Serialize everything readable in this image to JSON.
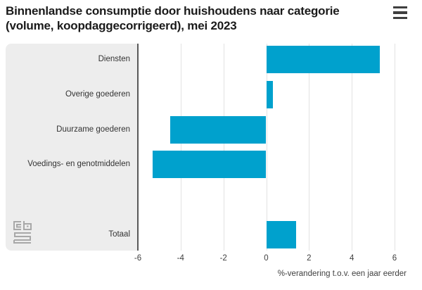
{
  "header": {
    "title_line1": "Binnenlandse consumptie door huishoudens naar categorie",
    "title_line2": "(volume, koopdaggecorrigeerd), mei 2023",
    "menu_icon": "hamburger-icon"
  },
  "footer": {
    "logo_icon": "cbs-logo"
  },
  "colors": {
    "bar": "#00a1cd",
    "label_panel_bg": "#ededed",
    "axis_line": "#595959",
    "gridline": "#e2e2e2",
    "title_text": "#1a1a1a",
    "tick_text": "#404040",
    "logo_gray": "#a8a8a8"
  },
  "chart_data": {
    "type": "bar",
    "orientation": "horizontal",
    "title": "Binnenlandse consumptie door huishoudens naar categorie (volume, koopdaggecorrigeerd), mei 2023",
    "categories": [
      "Diensten",
      "Overige goederen",
      "Duurzame goederen",
      "Voedings- en genotmiddelen",
      "Totaal"
    ],
    "values": [
      5.3,
      0.3,
      -4.5,
      -5.3,
      1.4
    ],
    "xlabel": "%-verandering t.o.v. een jaar eerder",
    "ylabel": "",
    "xlim": [
      -6,
      6
    ],
    "x_ticks": [
      -6,
      -4,
      -2,
      0,
      2,
      4,
      6
    ],
    "x_tick_labels": [
      "-6",
      "-4",
      "-2",
      "0",
      "2",
      "4",
      "6"
    ],
    "grid": true,
    "legend": "none",
    "last_row_separated": true
  }
}
